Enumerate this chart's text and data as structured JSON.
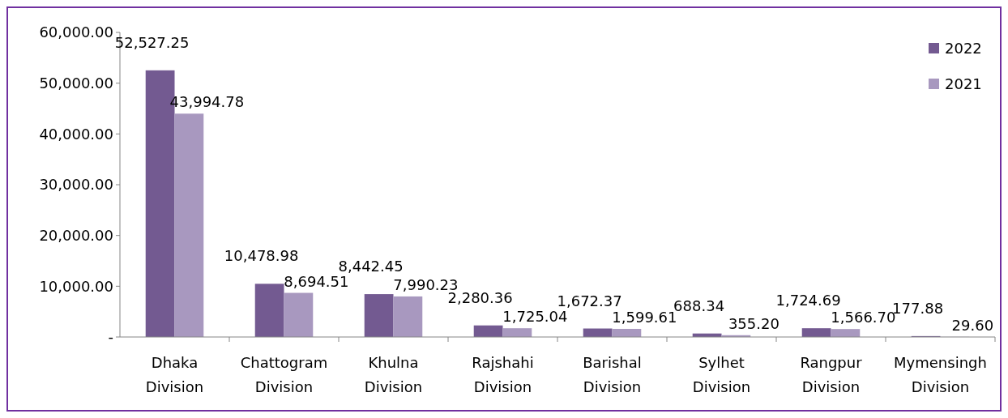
{
  "chart_data": {
    "type": "bar",
    "categories": [
      "Dhaka Division",
      "Chattogram Division",
      "Khulna Division",
      "Rajshahi Division",
      "Barishal Division",
      "Sylhet Division",
      "Rangpur Division",
      "Mymensingh Division"
    ],
    "series": [
      {
        "name": "2022",
        "color": "#735a91",
        "values": [
          52527.25,
          10478.98,
          8442.45,
          2280.36,
          1672.37,
          688.34,
          1724.69,
          177.88
        ],
        "value_labels": [
          "52,527.25",
          "10,478.98",
          "8,442.45",
          "2,280.36",
          "1,672.37",
          "688.34",
          "1,724.69",
          "177.88"
        ]
      },
      {
        "name": "2021",
        "color": "#a898bf",
        "values": [
          43994.78,
          8694.51,
          7990.23,
          1725.04,
          1599.61,
          355.2,
          1566.7,
          29.6
        ],
        "value_labels": [
          "43,994.78",
          "8,694.51",
          "7,990.23",
          "1,725.04",
          "1,599.61",
          "355.20",
          "1,566.70",
          "29.60"
        ]
      }
    ],
    "ylim": [
      0,
      60000
    ],
    "yticks": [
      {
        "value": 0,
        "label": "-"
      },
      {
        "value": 10000,
        "label": "10,000.00"
      },
      {
        "value": 20000,
        "label": "20,000.00"
      },
      {
        "value": 30000,
        "label": "30,000.00"
      },
      {
        "value": 40000,
        "label": "40,000.00"
      },
      {
        "value": 50000,
        "label": "50,000.00"
      },
      {
        "value": 60000,
        "label": "60,000.00"
      }
    ],
    "grid": false,
    "legend": "top right"
  }
}
